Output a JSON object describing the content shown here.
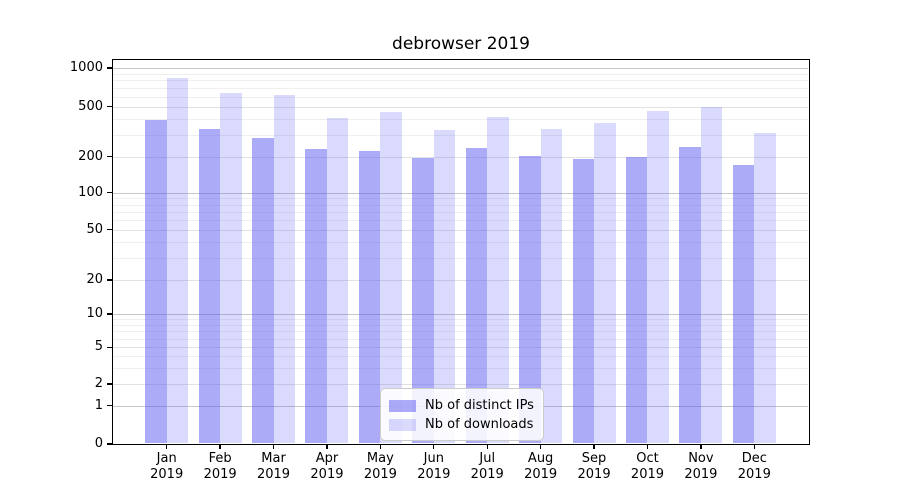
{
  "title": "debrowser 2019",
  "legend": {
    "items": [
      "Nb of distinct IPs",
      "Nb of downloads"
    ]
  },
  "chart_data": {
    "type": "bar",
    "title": "debrowser 2019",
    "categories": [
      "Jan",
      "Feb",
      "Mar",
      "Apr",
      "May",
      "Jun",
      "Jul",
      "Aug",
      "Sep",
      "Oct",
      "Nov",
      "Dec"
    ],
    "x_tick_line2": "2019",
    "series": [
      {
        "name": "Nb of distinct IPs",
        "color": "rgba(87,87,240,0.5)",
        "base_color": "#5757f0",
        "values": [
          390,
          335,
          280,
          230,
          223,
          196,
          236,
          203,
          192,
          198,
          240,
          171
        ]
      },
      {
        "name": "Nb of downloads",
        "color": "rgba(87,87,240,0.22)",
        "base_color": "#5757f0",
        "values": [
          840,
          640,
          620,
          405,
          455,
          325,
          415,
          330,
          370,
          465,
          500,
          306
        ]
      }
    ],
    "yscale": "symlog",
    "ylim": [
      0,
      1000
    ],
    "yticks": [
      0,
      1,
      2,
      5,
      10,
      20,
      50,
      100,
      200,
      500,
      1000
    ],
    "ytick_decades": [
      1,
      10,
      100,
      1000
    ],
    "yminor_ticks": [
      3,
      4,
      6,
      7,
      8,
      9,
      30,
      40,
      60,
      70,
      80,
      90,
      300,
      400,
      600,
      700,
      800,
      900
    ],
    "grid": "both",
    "legend_position": "lower center",
    "xlabel": "",
    "ylabel": ""
  }
}
